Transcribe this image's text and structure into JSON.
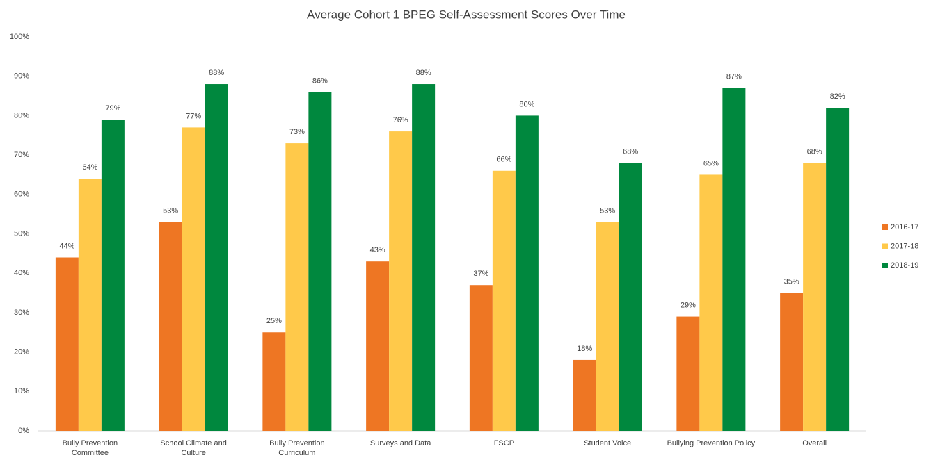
{
  "chart_data": {
    "type": "bar",
    "title": "Average Cohort 1 BPEG Self-Assessment Scores Over Time",
    "categories": [
      "Bully Prevention Committee",
      "School Climate and Culture",
      "Bully Prevention Curriculum",
      "Surveys and Data",
      "FSCP",
      "Student Voice",
      "Bullying Prevention Policy",
      "Overall"
    ],
    "series": [
      {
        "name": "2016-17",
        "color": "#ee7623",
        "values": [
          44,
          53,
          25,
          43,
          37,
          18,
          29,
          35
        ],
        "value_labels": [
          "44%",
          "53%",
          "25%",
          "43%",
          "37%",
          "18%",
          "29%",
          "35%"
        ]
      },
      {
        "name": "2017-18",
        "color": "#ffc94a",
        "values": [
          64,
          77,
          73,
          76,
          66,
          53,
          65,
          68
        ],
        "value_labels": [
          "64%",
          "77%",
          "73%",
          "76%",
          "66%",
          "53%",
          "65%",
          "68%"
        ]
      },
      {
        "name": "2018-19",
        "color": "#00883e",
        "values": [
          79,
          88,
          86,
          88,
          80,
          68,
          87,
          82
        ],
        "value_labels": [
          "79%",
          "88%",
          "86%",
          "88%",
          "80%",
          "68%",
          "87%",
          "82%"
        ]
      }
    ],
    "ylim": [
      0,
      100
    ],
    "yticks": [
      {
        "value": 0,
        "label": "0%"
      },
      {
        "value": 10,
        "label": "10%"
      },
      {
        "value": 20,
        "label": "20%"
      },
      {
        "value": 30,
        "label": "30%"
      },
      {
        "value": 40,
        "label": "40%"
      },
      {
        "value": 50,
        "label": "50%"
      },
      {
        "value": 60,
        "label": "60%"
      },
      {
        "value": 70,
        "label": "70%"
      },
      {
        "value": 80,
        "label": "80%"
      },
      {
        "value": 90,
        "label": "90%"
      },
      {
        "value": 100,
        "label": "100%"
      }
    ],
    "grid": false,
    "legend": "right"
  }
}
